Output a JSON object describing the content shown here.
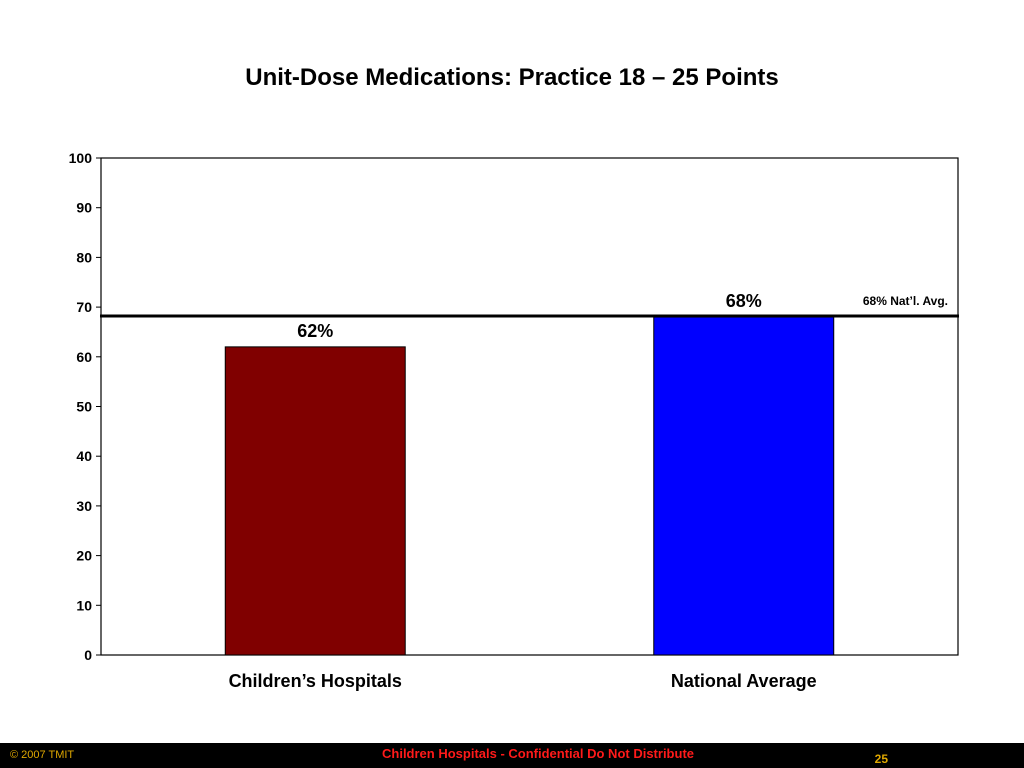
{
  "chart_data": {
    "type": "bar",
    "title": "Unit-Dose Medications: Practice 18 – 25 Points",
    "categories": [
      "Children’s Hospitals",
      "National Average"
    ],
    "values": [
      62,
      68
    ],
    "data_labels": [
      "62%",
      "68%"
    ],
    "colors": [
      "#800000",
      "#0000ff"
    ],
    "ylim": [
      0,
      100
    ],
    "yticks": [
      0,
      10,
      20,
      30,
      40,
      50,
      60,
      70,
      80,
      90,
      100
    ],
    "grid": false,
    "reference_line": {
      "value": 68,
      "label": "68% Nat’l. Avg.",
      "color": "#000000"
    }
  },
  "footer": {
    "copyright": "© 2007 TMIT",
    "notice": "Children Hospitals - Confidential Do Not Distribute",
    "page_number": "25"
  }
}
